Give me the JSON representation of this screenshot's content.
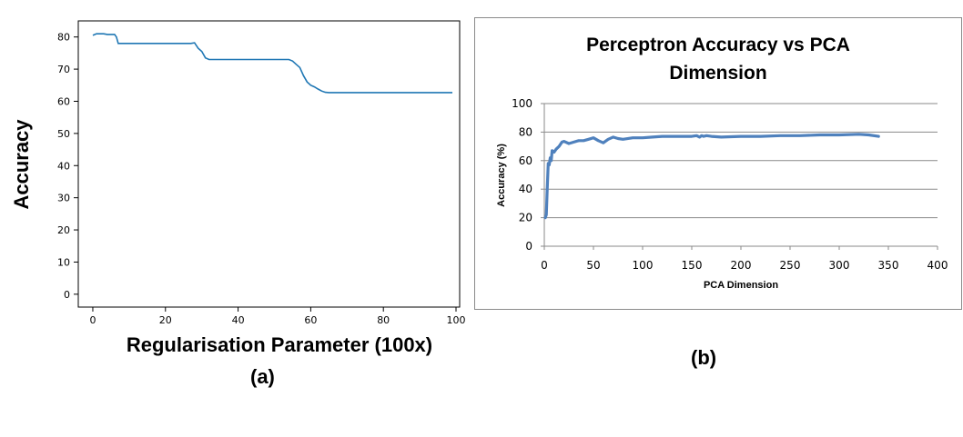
{
  "chart_data": [
    {
      "type": "line",
      "title": "",
      "xlabel": "Regularisation Parameter (100x)",
      "ylabel": "Accuracy",
      "caption": "(a)",
      "xlim": [
        -4,
        101
      ],
      "ylim": [
        -4,
        85
      ],
      "xticks": [
        0,
        20,
        40,
        60,
        80,
        100
      ],
      "yticks": [
        0,
        10,
        20,
        30,
        40,
        50,
        60,
        70,
        80
      ],
      "grid": false,
      "line_color": "#1f77b4",
      "series": [
        {
          "x": [
            0,
            1,
            2,
            3,
            4,
            5,
            6,
            6.5,
            7,
            10,
            15,
            20,
            25,
            27,
            28,
            29,
            30,
            31,
            32,
            35,
            40,
            45,
            50,
            53,
            54,
            55,
            56,
            57,
            58,
            59,
            60,
            61,
            62,
            63,
            64,
            65,
            70,
            80,
            90,
            99
          ],
          "y": [
            80.5,
            81,
            81,
            81,
            80.8,
            80.8,
            80.8,
            80,
            78,
            78,
            78,
            78,
            78,
            78,
            78.2,
            76.5,
            75.5,
            73.5,
            73,
            73,
            73,
            73,
            73,
            73,
            73,
            72.5,
            71.5,
            70.5,
            68,
            66,
            65,
            64.5,
            63.8,
            63.2,
            62.8,
            62.7,
            62.7,
            62.7,
            62.7,
            62.7
          ]
        }
      ]
    },
    {
      "type": "line",
      "title": "Perceptron Accuracy vs PCA Dimension",
      "title_lines": [
        "Perceptron Accuracy vs PCA",
        "Dimension"
      ],
      "xlabel": "PCA Dimension",
      "ylabel": "Accuracy  (%)",
      "caption": "(b)",
      "xlim": [
        0,
        400
      ],
      "ylim": [
        0,
        100
      ],
      "xticks": [
        0,
        50,
        100,
        150,
        200,
        250,
        300,
        350,
        400
      ],
      "yticks": [
        0,
        20,
        40,
        60,
        80,
        100
      ],
      "grid": true,
      "line_color": "#4f81bd",
      "series": [
        {
          "x": [
            1,
            2,
            3,
            4,
            5,
            6,
            7,
            8,
            10,
            12,
            15,
            18,
            20,
            25,
            30,
            35,
            40,
            45,
            50,
            55,
            60,
            65,
            70,
            75,
            80,
            90,
            100,
            110,
            120,
            130,
            140,
            150,
            155,
            158,
            160,
            162,
            165,
            170,
            180,
            200,
            220,
            240,
            260,
            280,
            300,
            320,
            330,
            340
          ],
          "y": [
            20,
            22,
            40,
            58,
            57,
            62,
            60,
            67,
            66,
            68,
            70,
            73,
            73.5,
            72,
            73,
            74,
            74,
            75,
            76,
            74,
            72.5,
            75,
            76.5,
            75.5,
            75,
            76,
            76,
            76.5,
            77,
            77,
            77,
            77,
            77.5,
            76.5,
            77.5,
            77,
            77.5,
            77,
            76.5,
            77,
            77,
            77.5,
            77.5,
            78,
            78,
            78.5,
            78,
            77
          ]
        }
      ]
    }
  ]
}
